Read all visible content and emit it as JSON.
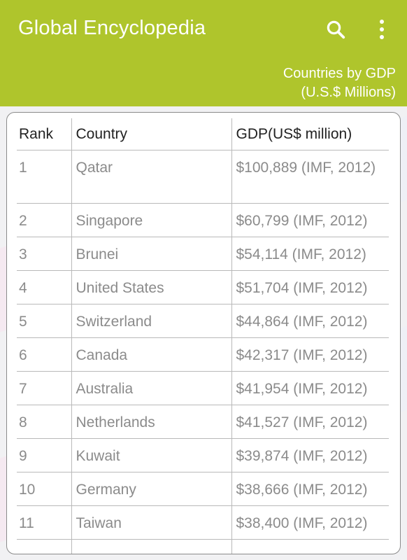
{
  "appbar": {
    "title": "Global Encyclopedia",
    "subtitle_line1": "Countries by GDP",
    "subtitle_line2": "(U.S.$ Millions)",
    "search_icon": "search-icon",
    "menu_icon": "more-vert-icon",
    "color": "#afc52c"
  },
  "table": {
    "headers": [
      "Rank",
      "Country",
      "GDP(US$ million)"
    ],
    "rows": [
      {
        "rank": "1",
        "country": "Qatar",
        "gdp": "$100,889 (IMF, 2012)"
      },
      {
        "rank": "2",
        "country": "Singapore",
        "gdp": "$60,799 (IMF, 2012)"
      },
      {
        "rank": "3",
        "country": "Brunei",
        "gdp": "$54,114 (IMF, 2012)"
      },
      {
        "rank": "4",
        "country": "United States",
        "gdp": "$51,704 (IMF, 2012)"
      },
      {
        "rank": "5",
        "country": "Switzerland",
        "gdp": "$44,864 (IMF, 2012)"
      },
      {
        "rank": "6",
        "country": "Canada",
        "gdp": "$42,317 (IMF, 2012)"
      },
      {
        "rank": "7",
        "country": "Australia",
        "gdp": "$41,954 (IMF, 2012)"
      },
      {
        "rank": "8",
        "country": "Netherlands",
        "gdp": "$41,527 (IMF, 2012)"
      },
      {
        "rank": "9",
        "country": "Kuwait",
        "gdp": "$39,874 (IMF, 2012)"
      },
      {
        "rank": "10",
        "country": "Germany",
        "gdp": "$38,666 (IMF, 2012)"
      },
      {
        "rank": "11",
        "country": "Taiwan",
        "gdp": "$38,400 (IMF, 2012)"
      }
    ]
  }
}
